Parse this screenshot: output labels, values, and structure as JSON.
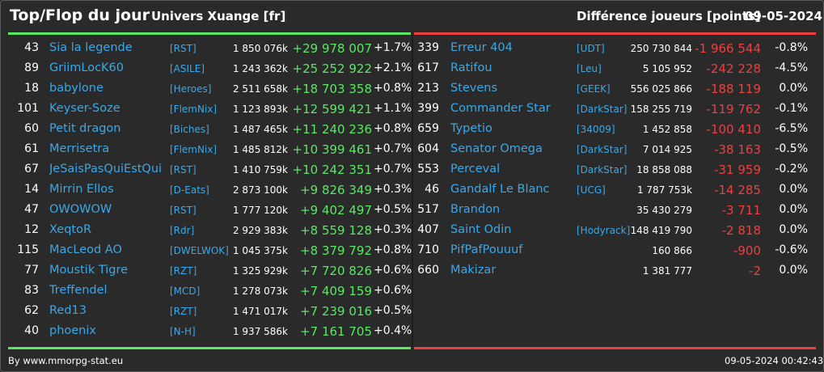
{
  "header": {
    "title": "Top/Flop du jour",
    "universe": "Univers Xuange [fr]",
    "metric": "Différence joueurs [points]",
    "date": "09-05-2024"
  },
  "colors": {
    "gain": "#59e862",
    "loss": "#ee3f3f",
    "link": "#3aa8e8",
    "top_line": "#59e862",
    "flop_line": "#ee3f3f"
  },
  "top": [
    {
      "rank": "43",
      "name": "Sia la legende",
      "alliance": "[RST]",
      "points": "1 850 076k",
      "delta": "+29 978 007",
      "pct": "+1.7%"
    },
    {
      "rank": "89",
      "name": "GriimLocK60",
      "alliance": "[ASILE]",
      "points": "1 243 362k",
      "delta": "+25 252 922",
      "pct": "+2.1%"
    },
    {
      "rank": "18",
      "name": "babylone",
      "alliance": "[Heroes]",
      "points": "2 511 658k",
      "delta": "+18 703 358",
      "pct": "+0.8%"
    },
    {
      "rank": "101",
      "name": "Keyser-Soze",
      "alliance": "[FlemNix]",
      "points": "1 123 893k",
      "delta": "+12 599 421",
      "pct": "+1.1%"
    },
    {
      "rank": "60",
      "name": "Petit dragon",
      "alliance": "[Biches]",
      "points": "1 487 465k",
      "delta": "+11 240 236",
      "pct": "+0.8%"
    },
    {
      "rank": "61",
      "name": "Merrisetra",
      "alliance": "[FlemNix]",
      "points": "1 485 812k",
      "delta": "+10 399 461",
      "pct": "+0.7%"
    },
    {
      "rank": "67",
      "name": "JeSaisPasQuiEstQui",
      "alliance": "[RST]",
      "points": "1 410 759k",
      "delta": "+10 242 351",
      "pct": "+0.7%"
    },
    {
      "rank": "14",
      "name": "Mirrin Ellos",
      "alliance": "[D-Eats]",
      "points": "2 873 100k",
      "delta": "+9 826 349",
      "pct": "+0.3%"
    },
    {
      "rank": "47",
      "name": "OWOWOW",
      "alliance": "[RST]",
      "points": "1 777 120k",
      "delta": "+9 402 497",
      "pct": "+0.5%"
    },
    {
      "rank": "12",
      "name": "XeqtoR",
      "alliance": "[Rdr]",
      "points": "2 929 383k",
      "delta": "+8 559 128",
      "pct": "+0.3%"
    },
    {
      "rank": "115",
      "name": "MacLeod AO",
      "alliance": "[DWELWOK]",
      "points": "1 045 375k",
      "delta": "+8 379 792",
      "pct": "+0.8%"
    },
    {
      "rank": "77",
      "name": "Moustik Tigre",
      "alliance": "[RZT]",
      "points": "1 325 929k",
      "delta": "+7 720 826",
      "pct": "+0.6%"
    },
    {
      "rank": "83",
      "name": "Treffendel",
      "alliance": "[MCD]",
      "points": "1 278 073k",
      "delta": "+7 409 159",
      "pct": "+0.6%"
    },
    {
      "rank": "62",
      "name": "Red13",
      "alliance": "[RZT]",
      "points": "1 471 017k",
      "delta": "+7 239 016",
      "pct": "+0.5%"
    },
    {
      "rank": "40",
      "name": "phoenix",
      "alliance": "[N-H]",
      "points": "1 937 586k",
      "delta": "+7 161 705",
      "pct": "+0.4%"
    }
  ],
  "flop": [
    {
      "rank": "339",
      "name": "Erreur 404",
      "alliance": "[UDT]",
      "points": "250 730 844",
      "delta": "-1 966 544",
      "pct": "-0.8%"
    },
    {
      "rank": "617",
      "name": "Ratifou",
      "alliance": "[Leu]",
      "points": "5 105 952",
      "delta": "-242 228",
      "pct": "-4.5%"
    },
    {
      "rank": "213",
      "name": "Stevens",
      "alliance": "[GEEK]",
      "points": "556 025 866",
      "delta": "-188 119",
      "pct": "0.0%"
    },
    {
      "rank": "399",
      "name": "Commander Star",
      "alliance": "[DarkStar]",
      "points": "158 255 719",
      "delta": "-119 762",
      "pct": "-0.1%"
    },
    {
      "rank": "659",
      "name": "Typetio",
      "alliance": "[34009]",
      "points": "1 452 858",
      "delta": "-100 410",
      "pct": "-6.5%"
    },
    {
      "rank": "604",
      "name": "Senator Omega",
      "alliance": "[DarkStar]",
      "points": "7 014 925",
      "delta": "-38 163",
      "pct": "-0.5%"
    },
    {
      "rank": "553",
      "name": "Perceval",
      "alliance": "[DarkStar]",
      "points": "18 858 088",
      "delta": "-31 959",
      "pct": "-0.2%"
    },
    {
      "rank": "46",
      "name": "Gandalf Le Blanc",
      "alliance": "[UCG]",
      "points": "1 787 753k",
      "delta": "-14 285",
      "pct": "0.0%"
    },
    {
      "rank": "517",
      "name": "Brandon",
      "alliance": "",
      "points": "35 430 279",
      "delta": "-3 711",
      "pct": "0.0%"
    },
    {
      "rank": "407",
      "name": "Saint Odin",
      "alliance": "[Hodyrack]",
      "points": "148 419 790",
      "delta": "-2 818",
      "pct": "0.0%"
    },
    {
      "rank": "710",
      "name": "PifPafPouuuf",
      "alliance": "",
      "points": "160 866",
      "delta": "-900",
      "pct": "-0.6%"
    },
    {
      "rank": "660",
      "name": "Makizar",
      "alliance": "",
      "points": "1 381 777",
      "delta": "-2",
      "pct": "0.0%"
    }
  ],
  "footer": {
    "source": "By www.mmorpg-stat.eu",
    "timestamp": "09-05-2024 00:42:43"
  }
}
